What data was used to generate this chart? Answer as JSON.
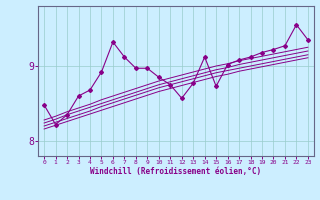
{
  "xlabel": "Windchill (Refroidissement éolien,°C)",
  "background_color": "#cceeff",
  "line_color": "#880088",
  "grid_color": "#99cccc",
  "x_data": [
    0,
    1,
    2,
    3,
    4,
    5,
    6,
    7,
    8,
    9,
    10,
    11,
    12,
    13,
    14,
    15,
    16,
    17,
    18,
    19,
    20,
    21,
    22,
    23
  ],
  "y_main": [
    8.48,
    8.22,
    8.35,
    8.6,
    8.68,
    8.92,
    9.32,
    9.12,
    8.97,
    8.97,
    8.85,
    8.75,
    8.57,
    8.77,
    9.12,
    8.73,
    9.02,
    9.08,
    9.12,
    9.18,
    9.22,
    9.27,
    9.55,
    9.35
  ],
  "y_line1": [
    8.28,
    8.33,
    8.39,
    8.44,
    8.49,
    8.55,
    8.6,
    8.65,
    8.7,
    8.75,
    8.8,
    8.84,
    8.88,
    8.92,
    8.96,
    9.0,
    9.03,
    9.07,
    9.1,
    9.13,
    9.16,
    9.19,
    9.22,
    9.25
  ],
  "y_line2": [
    8.24,
    8.29,
    8.35,
    8.4,
    8.45,
    8.5,
    8.55,
    8.6,
    8.65,
    8.7,
    8.75,
    8.79,
    8.83,
    8.87,
    8.91,
    8.95,
    8.98,
    9.02,
    9.05,
    9.08,
    9.11,
    9.14,
    9.17,
    9.2
  ],
  "y_line3": [
    8.2,
    8.25,
    8.3,
    8.35,
    8.4,
    8.46,
    8.51,
    8.56,
    8.61,
    8.66,
    8.71,
    8.75,
    8.79,
    8.83,
    8.87,
    8.91,
    8.94,
    8.97,
    9.0,
    9.03,
    9.06,
    9.09,
    9.12,
    9.15
  ],
  "y_line4": [
    8.16,
    8.21,
    8.26,
    8.31,
    8.36,
    8.41,
    8.46,
    8.51,
    8.56,
    8.61,
    8.66,
    8.7,
    8.74,
    8.78,
    8.82,
    8.86,
    8.89,
    8.93,
    8.96,
    8.99,
    9.02,
    9.05,
    9.08,
    9.11
  ],
  "yticks": [
    8.0,
    9.0
  ],
  "ylim": [
    7.8,
    9.8
  ],
  "xlim": [
    -0.5,
    23.5
  ],
  "xticks": [
    0,
    1,
    2,
    3,
    4,
    5,
    6,
    7,
    8,
    9,
    10,
    11,
    12,
    13,
    14,
    15,
    16,
    17,
    18,
    19,
    20,
    21,
    22,
    23
  ]
}
